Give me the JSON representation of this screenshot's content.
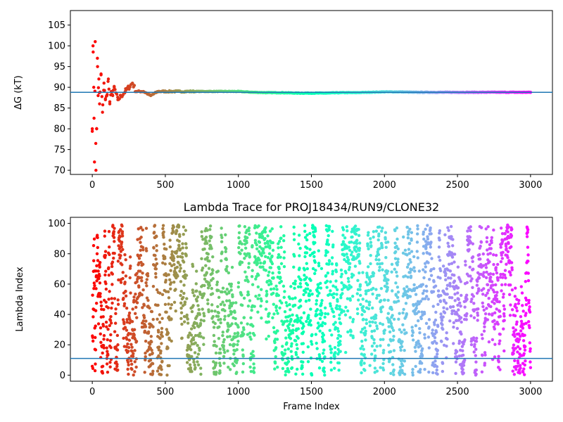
{
  "chart_data": [
    {
      "type": "scatter",
      "title": "",
      "xlabel": "",
      "ylabel": "ΔG (kT)",
      "xlim": [
        -150,
        3150
      ],
      "ylim": [
        69,
        108.5
      ],
      "xticks": [
        0,
        500,
        1000,
        1500,
        2000,
        2500,
        3000
      ],
      "yticks": [
        70,
        75,
        80,
        85,
        90,
        95,
        100,
        105
      ],
      "colormap": "rainbow",
      "hline": 88.8,
      "hline_color": "#1f77b4",
      "series": [
        {
          "x": [
            0,
            5,
            10,
            15,
            20,
            25,
            30,
            35,
            40,
            45,
            50,
            60,
            70,
            80,
            90,
            100,
            110,
            120,
            130,
            140,
            150,
            175,
            200,
            225,
            250,
            275,
            300,
            350,
            400,
            450,
            500,
            600,
            700,
            800,
            900,
            1000,
            1100,
            1200,
            1300,
            1400,
            1500,
            1600,
            1700,
            1800,
            1900,
            2000,
            2100,
            2200,
            2300,
            2400,
            2500,
            2600,
            2700,
            2800,
            2900,
            3000
          ],
          "y": [
            80,
            100,
            90,
            72,
            101,
            70,
            80,
            97,
            88,
            92,
            86,
            93,
            84,
            91,
            87,
            88,
            92,
            86,
            89,
            88,
            90,
            87,
            88,
            89,
            90,
            91,
            89,
            89,
            88,
            89,
            89,
            89,
            89,
            89,
            89,
            89,
            88.8,
            88.7,
            88.7,
            88.6,
            88.6,
            88.6,
            88.7,
            88.7,
            88.8,
            88.9,
            88.9,
            88.8,
            88.8,
            88.8,
            88.8,
            88.8,
            88.8,
            88.8,
            88.8,
            88.8
          ]
        }
      ]
    },
    {
      "type": "scatter",
      "title": "Lambda Trace for PROJ18434/RUN9/CLONE32",
      "xlabel": "Frame Index",
      "ylabel": "Lambda Index",
      "xlim": [
        -150,
        3150
      ],
      "ylim": [
        -4,
        104
      ],
      "xticks": [
        0,
        500,
        1000,
        1500,
        2000,
        2500,
        3000
      ],
      "yticks": [
        0,
        20,
        40,
        60,
        80,
        100
      ],
      "colormap": "rainbow",
      "hline": 11,
      "hline_color": "#1f77b4",
      "point_count": 3000
    }
  ]
}
